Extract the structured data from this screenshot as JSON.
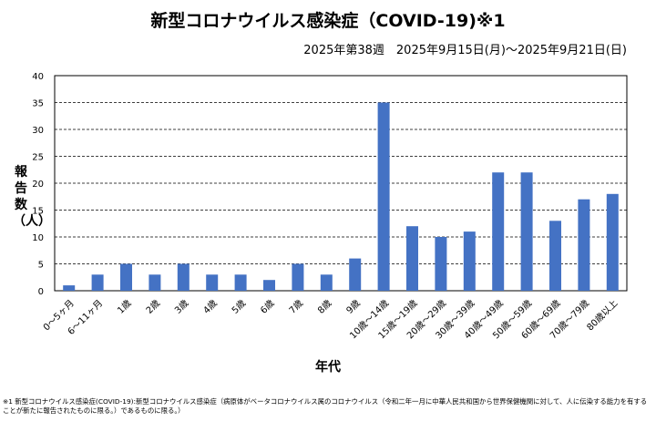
{
  "chart_data": {
    "type": "bar",
    "title": "新型コロナウイルス感染症（COVID-19)※1",
    "subtitle": "2025年第38週　2025年9月15日(月)～2025年9月21日(日)",
    "xlabel": "年代",
    "ylabel": "報告数（人）",
    "ylim": [
      0,
      40
    ],
    "yticks": [
      0,
      5,
      10,
      15,
      20,
      25,
      30,
      35,
      40
    ],
    "grid": true,
    "bar_color": "#4472C4",
    "categories": [
      "0～5ヶ月",
      "6～11ヶ月",
      "1歳",
      "2歳",
      "3歳",
      "4歳",
      "5歳",
      "6歳",
      "7歳",
      "8歳",
      "9歳",
      "10歳～14歳",
      "15歳～19歳",
      "20歳～29歳",
      "30歳～39歳",
      "40歳～49歳",
      "50歳～59歳",
      "60歳～69歳",
      "70歳～79歳",
      "80歳以上"
    ],
    "values": [
      1,
      3,
      5,
      3,
      5,
      3,
      3,
      2,
      5,
      3,
      6,
      35,
      12,
      10,
      11,
      22,
      22,
      13,
      17,
      18
    ]
  },
  "footnote": "※1 新型コロナウイルス感染症(COVID-19):新型コロナウイルス感染症（病原体がベータコロナウイルス属のコロナウイルス（令和二年一月に中華人民共和国から世界保健機関に対して、人に伝染する能力を有することが新たに報告されたものに限る。）であるものに限る。）"
}
